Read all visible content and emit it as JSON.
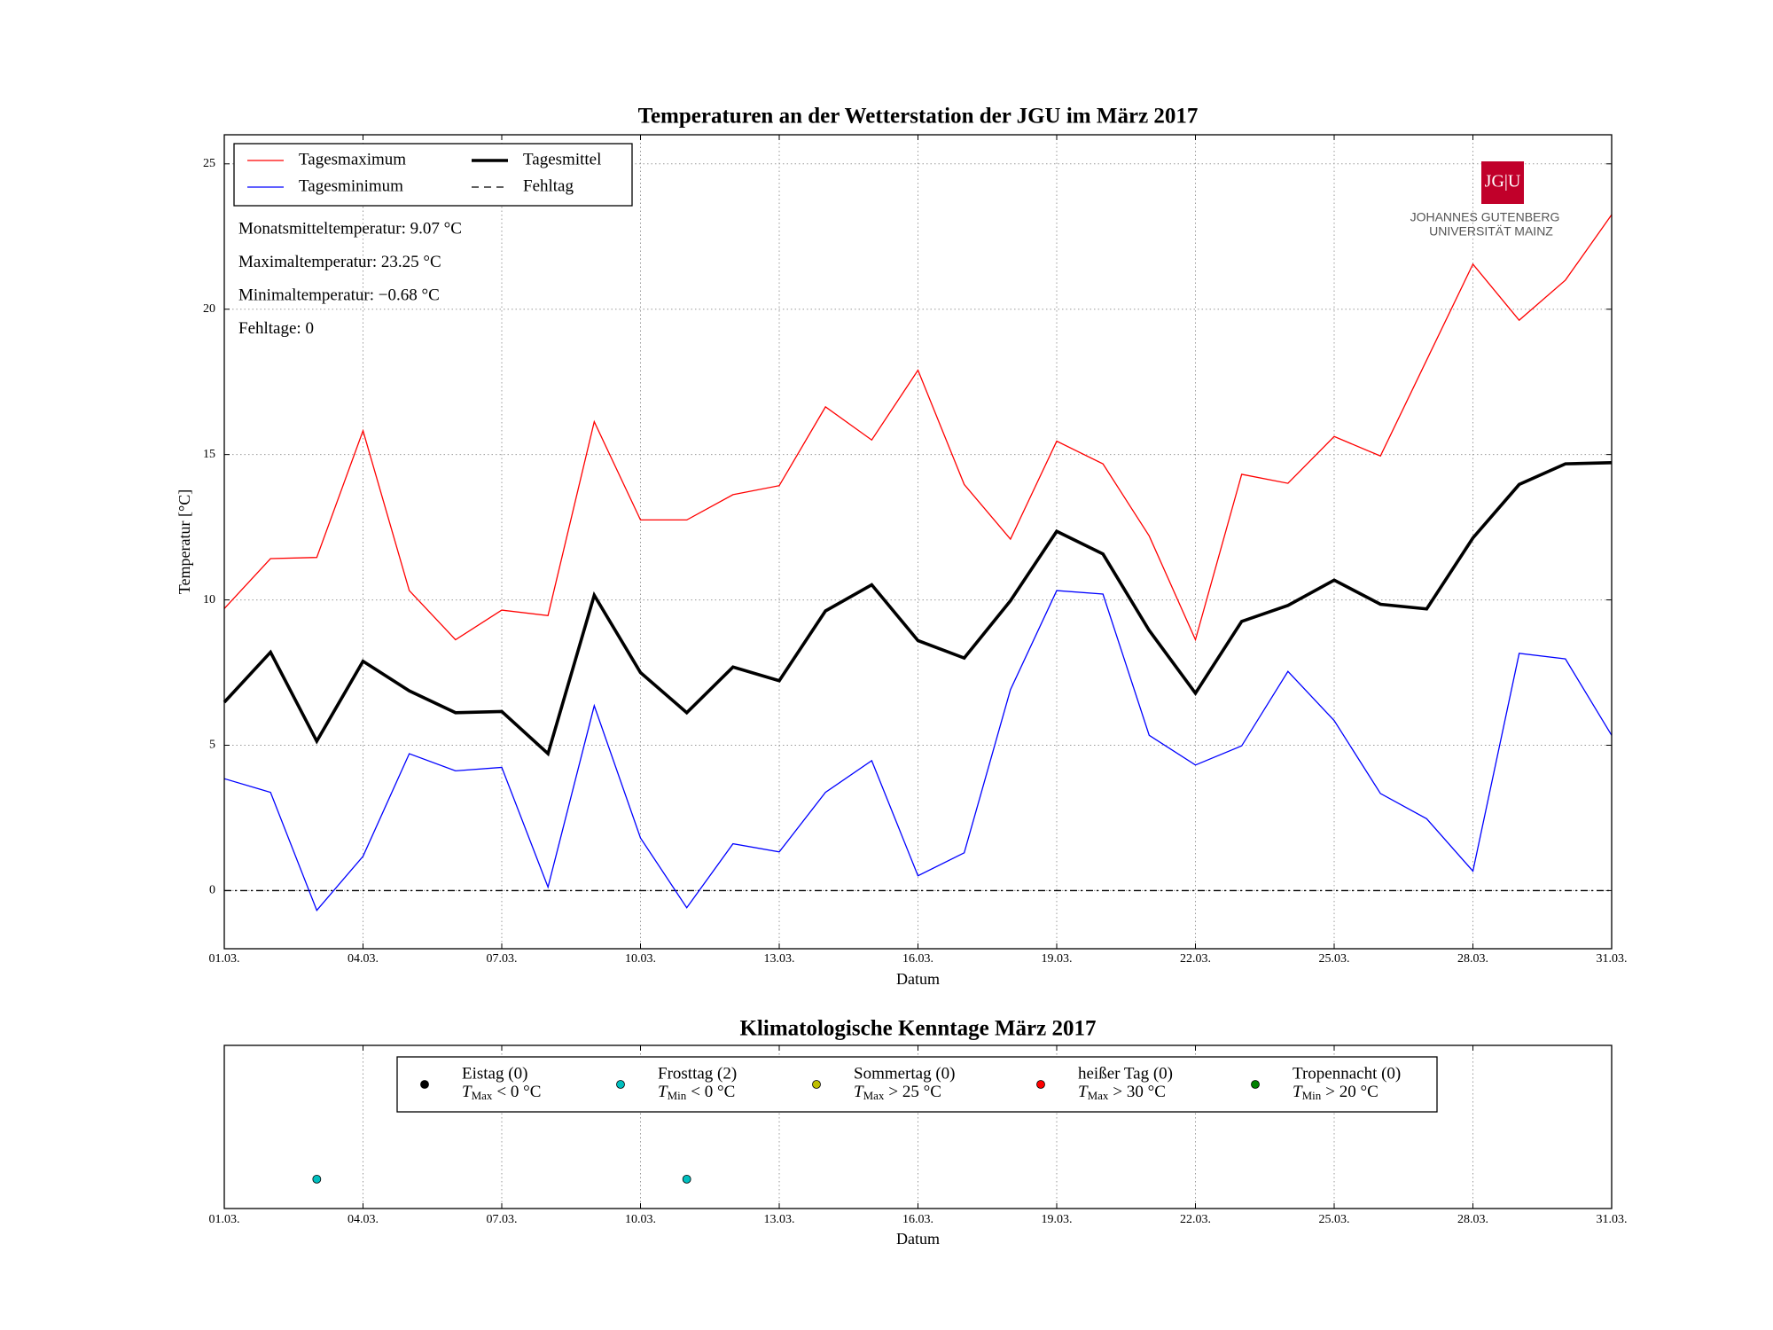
{
  "chart_data": [
    {
      "type": "line",
      "title": "Temperaturen an der Wetterstation der JGU im März 2017",
      "xlabel": "Datum",
      "ylabel": "Temperatur [°C]",
      "x": [
        1,
        2,
        3,
        4,
        5,
        6,
        7,
        8,
        9,
        10,
        11,
        12,
        13,
        14,
        15,
        16,
        17,
        18,
        19,
        20,
        21,
        22,
        23,
        24,
        25,
        26,
        27,
        28,
        29,
        30,
        31
      ],
      "xlim": [
        1,
        31
      ],
      "xticks": [
        {
          "value": 1,
          "label": "01.03."
        },
        {
          "value": 4,
          "label": "04.03."
        },
        {
          "value": 7,
          "label": "07.03."
        },
        {
          "value": 10,
          "label": "10.03."
        },
        {
          "value": 13,
          "label": "13.03."
        },
        {
          "value": 16,
          "label": "16.03."
        },
        {
          "value": 19,
          "label": "19.03."
        },
        {
          "value": 22,
          "label": "22.03."
        },
        {
          "value": 25,
          "label": "25.03."
        },
        {
          "value": 28,
          "label": "28.03."
        },
        {
          "value": 31,
          "label": "31.03."
        }
      ],
      "ylim": [
        -2,
        26
      ],
      "yticks": [
        0,
        5,
        10,
        15,
        20,
        25
      ],
      "grid": true,
      "legend": "upper left",
      "reference_line": 0,
      "series": [
        {
          "name": "Tagesmaximum",
          "color": "#ff0000",
          "style": "solid",
          "width": 1.3,
          "values": [
            9.7,
            11.42,
            11.46,
            15.82,
            10.32,
            8.63,
            9.65,
            9.46,
            16.13,
            12.75,
            12.75,
            13.62,
            13.93,
            16.64,
            15.5,
            17.9,
            13.97,
            12.09,
            15.46,
            14.68,
            12.2,
            8.63,
            14.32,
            14.01,
            15.62,
            14.95,
            18.25,
            21.55,
            19.62,
            21.0,
            23.25
          ]
        },
        {
          "name": "Tagesminimum",
          "color": "#0000ff",
          "style": "solid",
          "width": 1.3,
          "values": [
            3.85,
            3.38,
            -0.68,
            1.18,
            4.71,
            4.12,
            4.24,
            0.12,
            6.36,
            1.81,
            -0.59,
            1.61,
            1.33,
            3.38,
            4.47,
            0.51,
            1.3,
            6.91,
            10.32,
            10.2,
            5.34,
            4.32,
            4.98,
            7.54,
            5.85,
            3.34,
            2.47,
            0.67,
            8.16,
            7.97,
            5.34
          ]
        },
        {
          "name": "Tagesmittel",
          "color": "#000000",
          "style": "solid",
          "width": 3.6,
          "values": [
            6.48,
            8.2,
            5.14,
            7.89,
            6.87,
            6.12,
            6.16,
            4.71,
            10.16,
            7.5,
            6.12,
            7.69,
            7.22,
            9.62,
            10.52,
            8.6,
            8.0,
            9.97,
            12.36,
            11.58,
            8.95,
            6.79,
            9.26,
            9.81,
            10.68,
            9.85,
            9.69,
            12.13,
            13.97,
            14.68,
            14.72
          ]
        },
        {
          "name": "Fehltag",
          "color": "#000000",
          "style": "dashed",
          "width": 1.3,
          "values": [
            null,
            null,
            null,
            null,
            null,
            null,
            null,
            null,
            null,
            null,
            null,
            null,
            null,
            null,
            null,
            null,
            null,
            null,
            null,
            null,
            null,
            null,
            null,
            null,
            null,
            null,
            null,
            null,
            null,
            null,
            null
          ]
        }
      ],
      "annotations": [
        "Monatsmitteltemperatur: 9.07 °C",
        "Maximaltemperatur: 23.25 °C",
        "Minimaltemperatur: −0.68 °C",
        "Fehltage: 0"
      ],
      "logo": {
        "mark": "JG|U",
        "line1": "JOHANNES GUTENBERG",
        "line2": "UNIVERSITÄT MAINZ"
      }
    },
    {
      "type": "scatter",
      "title": "Klimatologische Kenntage März 2017",
      "xlabel": "Datum",
      "xlim": [
        1,
        31
      ],
      "xticks": [
        {
          "value": 1,
          "label": "01.03."
        },
        {
          "value": 4,
          "label": "04.03."
        },
        {
          "value": 7,
          "label": "07.03."
        },
        {
          "value": 10,
          "label": "10.03."
        },
        {
          "value": 13,
          "label": "13.03."
        },
        {
          "value": 16,
          "label": "16.03."
        },
        {
          "value": 19,
          "label": "19.03."
        },
        {
          "value": 22,
          "label": "22.03."
        },
        {
          "value": 25,
          "label": "25.03."
        },
        {
          "value": 28,
          "label": "28.03."
        },
        {
          "value": 31,
          "label": "31.03."
        }
      ],
      "ylim": [
        0,
        1
      ],
      "grid": true,
      "legend": "upper center",
      "series": [
        {
          "name": "Eistag (0)",
          "condition": {
            "symbol": "T",
            "sub": "Max",
            "rel": "< 0 °C"
          },
          "color": "#000000",
          "x": [],
          "values": []
        },
        {
          "name": "Frosttag (2)",
          "condition": {
            "symbol": "T",
            "sub": "Min",
            "rel": "< 0 °C"
          },
          "color": "#00bfbf",
          "x": [
            3,
            11
          ],
          "values": [
            0.18,
            0.18
          ]
        },
        {
          "name": "Sommertag (0)",
          "condition": {
            "symbol": "T",
            "sub": "Max",
            "rel": "> 25 °C"
          },
          "color": "#bfbf00",
          "x": [],
          "values": []
        },
        {
          "name": "heißer Tag (0)",
          "condition": {
            "symbol": "T",
            "sub": "Max",
            "rel": "> 30 °C"
          },
          "color": "#ff0000",
          "x": [],
          "values": []
        },
        {
          "name": "Tropennacht (0)",
          "condition": {
            "symbol": "T",
            "sub": "Min",
            "rel": "> 20 °C"
          },
          "color": "#008000",
          "x": [],
          "values": []
        }
      ]
    }
  ]
}
